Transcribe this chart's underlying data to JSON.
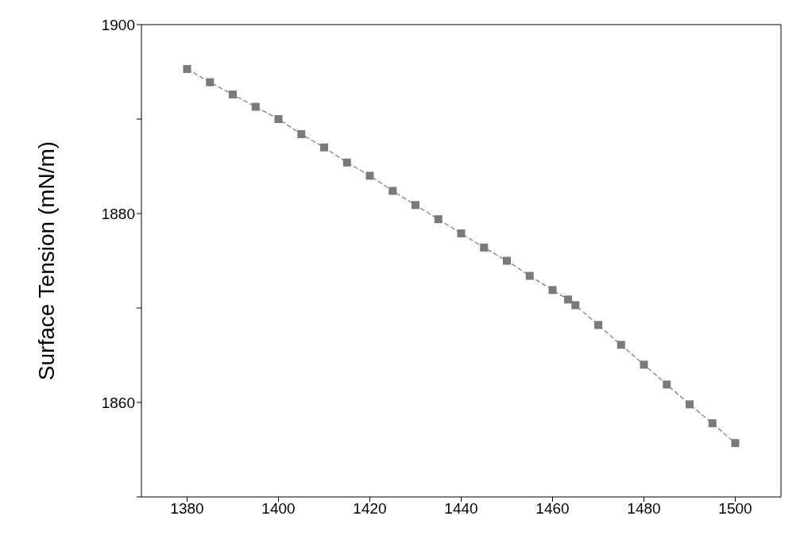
{
  "chart_data": {
    "type": "line",
    "ylabel": "Surface Tension (mN/m)",
    "x": [
      1380,
      1385,
      1390,
      1395,
      1400,
      1405,
      1410,
      1415,
      1420,
      1425,
      1430,
      1435,
      1440,
      1445,
      1450,
      1455,
      1460,
      1463.4,
      1465,
      1470,
      1475,
      1480,
      1485,
      1490,
      1495,
      1500
    ],
    "series": [
      {
        "color": "#7a7a7a",
        "values": [
          1895.3,
          1893.9,
          1892.6,
          1891.3,
          1890.0,
          1888.4,
          1887.0,
          1885.4,
          1884.0,
          1882.4,
          1880.9,
          1879.4,
          1877.9,
          1876.4,
          1875.0,
          1873.4,
          1871.9,
          1870.9,
          1870.3,
          1868.2,
          1866.1,
          1864.0,
          1861.9,
          1859.8,
          1857.8,
          1855.7
        ]
      }
    ],
    "xlim": [
      1370,
      1510
    ],
    "xticks": [
      1380,
      1400,
      1420,
      1440,
      1460,
      1480,
      1500
    ],
    "ylim": [
      1850,
      1900
    ],
    "yticks": [
      {
        "value": 1850,
        "label": null
      },
      1860,
      {
        "value": 1870,
        "label": null
      },
      1880,
      {
        "value": 1890,
        "label": null
      },
      1900
    ],
    "marker": "square",
    "line_style": "dashed",
    "grid": false
  }
}
